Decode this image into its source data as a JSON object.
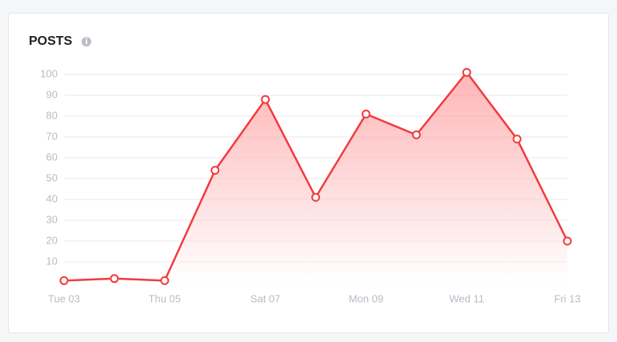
{
  "chart_data": {
    "type": "area",
    "title": "POSTS",
    "categories": [
      "Tue 03",
      null,
      "Thu 05",
      null,
      "Sat 07",
      null,
      "Mon 09",
      null,
      "Wed 11",
      null,
      "Fri 13"
    ],
    "values": [
      1,
      2,
      1,
      54,
      88,
      41,
      81,
      71,
      101,
      69,
      20
    ],
    "color": "#f03c3e",
    "ylim": [
      0,
      100
    ],
    "yticks": [
      10,
      20,
      30,
      40,
      50,
      60,
      70,
      80,
      90,
      100
    ],
    "grid": true
  }
}
